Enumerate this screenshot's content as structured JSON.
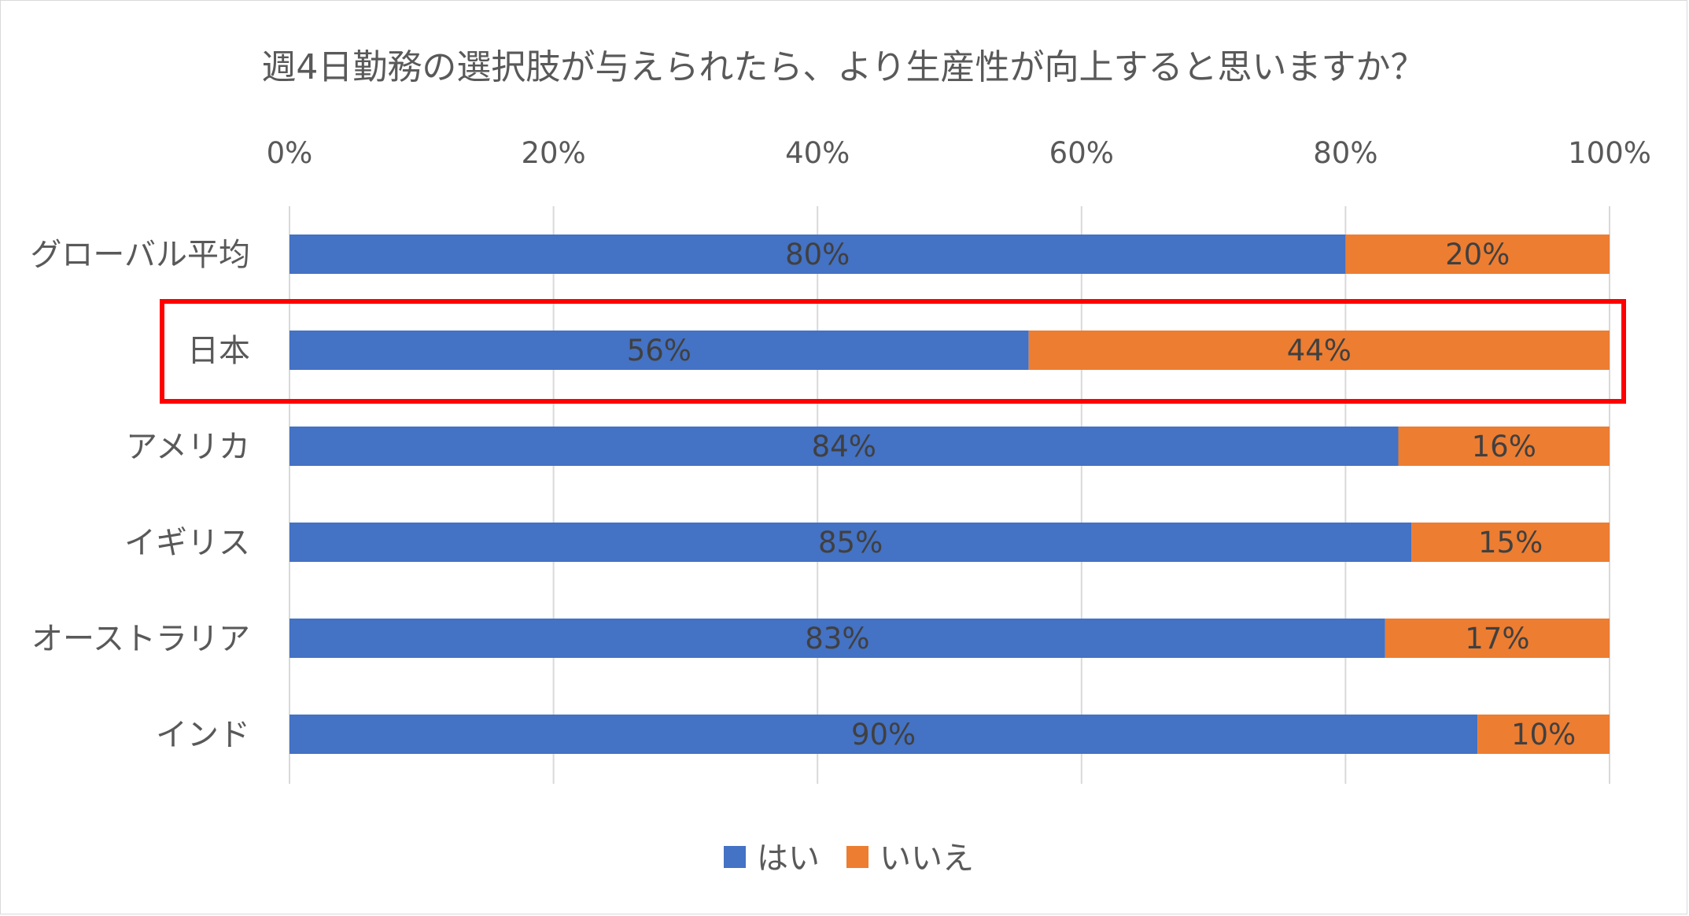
{
  "chart_data": {
    "type": "bar",
    "orientation": "horizontal",
    "stacked": "percent",
    "title": "週4日勤務の選択肢が与えられたら、より生産性が向上すると思いますか？",
    "categories": [
      "グローバル平均",
      "日本",
      "アメリカ",
      "イギリス",
      "オーストラリア",
      "インド"
    ],
    "series": [
      {
        "name": "はい",
        "color": "#4472C4",
        "values": [
          80,
          56,
          84,
          85,
          83,
          90
        ]
      },
      {
        "name": "いいえ",
        "color": "#ED7D31",
        "values": [
          20,
          44,
          16,
          15,
          17,
          10
        ]
      }
    ],
    "x_ticks": [
      "0%",
      "20%",
      "40%",
      "60%",
      "80%",
      "100%"
    ],
    "xlim": [
      0,
      100
    ],
    "x_axis_position": "top",
    "grid": true,
    "legend": "bottom",
    "highlight": {
      "category": "日本",
      "color": "#FF0000"
    }
  }
}
